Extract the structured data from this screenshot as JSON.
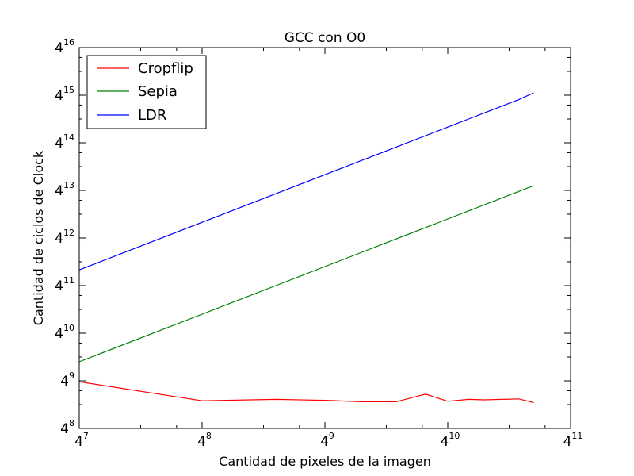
{
  "chart_data": {
    "type": "line",
    "title": "GCC con O0",
    "xlabel": "Cantidad de pixeles de la imagen",
    "ylabel": "Cantidad de ciclos de Clock",
    "xscale": "log4",
    "yscale": "log4",
    "xlim_exponent": [
      7,
      11
    ],
    "ylim_exponent": [
      8,
      16
    ],
    "tick_base": "4",
    "x_ticks": [
      {
        "base": "4",
        "exp": "7"
      },
      {
        "base": "4",
        "exp": "8"
      },
      {
        "base": "4",
        "exp": "9"
      },
      {
        "base": "4",
        "exp": "10"
      },
      {
        "base": "4",
        "exp": "11"
      }
    ],
    "y_ticks": [
      {
        "base": "4",
        "exp": "8"
      },
      {
        "base": "4",
        "exp": "9"
      },
      {
        "base": "4",
        "exp": "10"
      },
      {
        "base": "4",
        "exp": "11"
      },
      {
        "base": "4",
        "exp": "12"
      },
      {
        "base": "4",
        "exp": "13"
      },
      {
        "base": "4",
        "exp": "14"
      },
      {
        "base": "4",
        "exp": "15"
      },
      {
        "base": "4",
        "exp": "16"
      }
    ],
    "grid": false,
    "legend_position": "top-left",
    "series": [
      {
        "name": "Cropflip",
        "color": "#ff0000",
        "x_exponent": [
          7.0,
          8.0,
          8.6,
          9.0,
          9.3,
          9.58,
          9.82,
          10.0,
          10.17,
          10.3,
          10.58,
          10.7
        ],
        "y_exponent": [
          8.98,
          8.58,
          8.61,
          8.59,
          8.56,
          8.56,
          8.72,
          8.57,
          8.61,
          8.6,
          8.62,
          8.54
        ]
      },
      {
        "name": "Sepia",
        "color": "#008000",
        "x_exponent": [
          7.0,
          8.0,
          8.6,
          9.0,
          9.3,
          9.58,
          9.82,
          10.0,
          10.17,
          10.3,
          10.58,
          10.7
        ],
        "y_exponent": [
          9.4,
          10.4,
          11.0,
          11.4,
          11.7,
          11.98,
          12.22,
          12.4,
          12.57,
          12.7,
          12.98,
          13.1
        ]
      },
      {
        "name": "LDR",
        "color": "#0000ff",
        "x_exponent": [
          7.0,
          8.0,
          8.6,
          9.0,
          9.3,
          9.58,
          9.82,
          10.0,
          10.17,
          10.3,
          10.58,
          10.7
        ],
        "y_exponent": [
          11.33,
          12.33,
          12.93,
          13.33,
          13.63,
          13.91,
          14.15,
          14.33,
          14.5,
          14.63,
          14.91,
          15.05
        ]
      }
    ]
  }
}
